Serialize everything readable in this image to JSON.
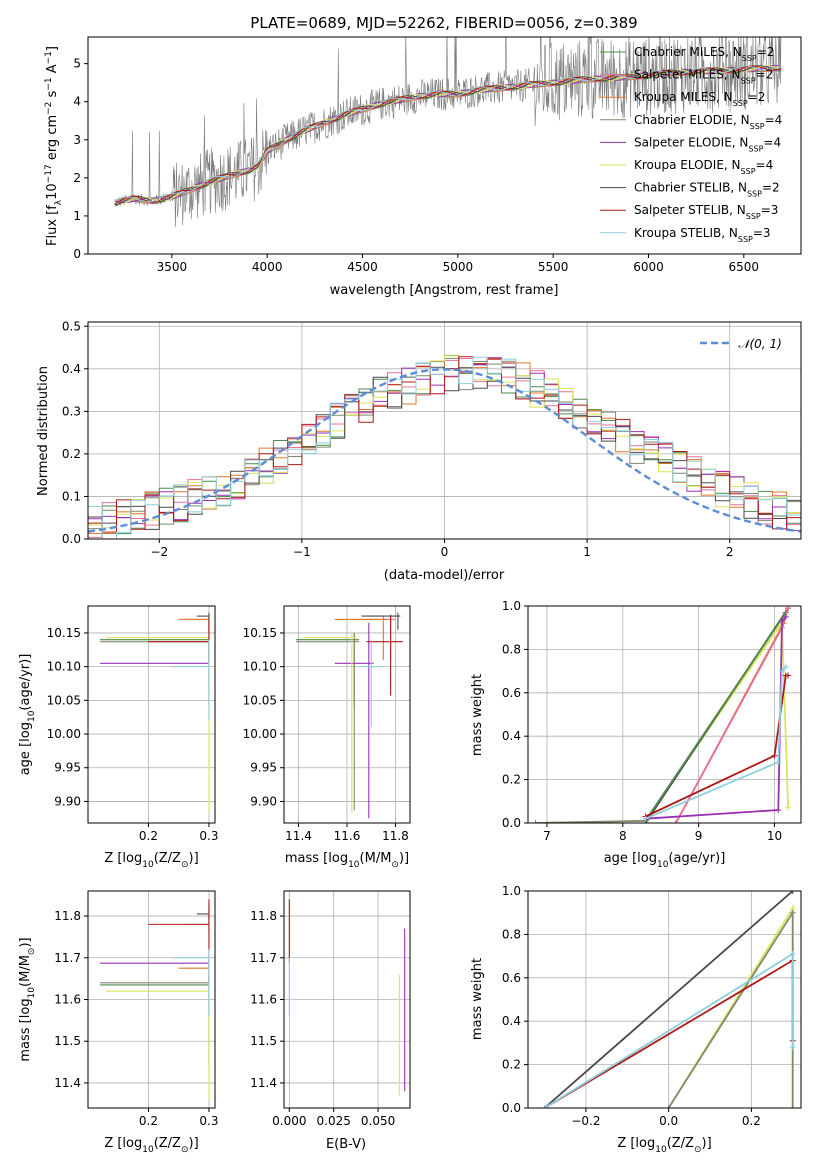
{
  "colors": {
    "Chabrier MILES": "#4c8c4c",
    "Salpeter MILES": "#e8719a",
    "Kroupa MILES": "#e07828",
    "Chabrier ELODIE": "#7f8a70",
    "Salpeter ELODIE": "#9a30b4",
    "Kroupa ELODIE": "#dde35a",
    "Chabrier STELIB": "#4a4a4a",
    "Salpeter STELIB": "#b01818",
    "Kroupa STELIB": "#8ccfdc",
    "normal_curve": "#5b8dd9",
    "grid": "#b0b0b0"
  },
  "chart_data": [
    {
      "id": "spectrum",
      "type": "line",
      "title": "PLATE=0689, MJD=52262, FIBERID=0056, z=0.389",
      "xlabel": "wavelength [Angstrom, rest frame]",
      "ylabel": "Flux [f",
      "ylabel_parts": {
        "a": "Flux [f",
        "sub": "λ",
        "b": "10",
        "sup1": "−17",
        "c": " erg cm",
        "sup2": "−2",
        "d": " s",
        "sup3": "−1",
        "e": " A",
        "sup4": "−1",
        "f": "]"
      },
      "xlim": [
        3060,
        6800
      ],
      "ylim": [
        0,
        5.7
      ],
      "xticks": [
        3500,
        4000,
        4500,
        5000,
        5500,
        6000,
        6500
      ],
      "yticks": [
        0,
        1,
        2,
        3,
        4,
        5
      ],
      "grid": false,
      "legend_position": "right",
      "legend": [
        {
          "label": "Chabrier MILES, N",
          "n": "=2",
          "series": "Chabrier MILES"
        },
        {
          "label": "Salpeter MILES, N",
          "n": "=2",
          "series": "Salpeter MILES"
        },
        {
          "label": "Kroupa MILES, N",
          "n": "=2",
          "series": "Kroupa MILES"
        },
        {
          "label": "Chabrier ELODIE, N",
          "n": "=4",
          "series": "Chabrier ELODIE"
        },
        {
          "label": "Salpeter ELODIE, N",
          "n": "=4",
          "series": "Salpeter ELODIE"
        },
        {
          "label": "Kroupa ELODIE, N",
          "n": "=4",
          "series": "Kroupa ELODIE"
        },
        {
          "label": "Chabrier STELIB, N",
          "n": "=2",
          "series": "Chabrier STELIB"
        },
        {
          "label": "Salpeter STELIB, N",
          "n": "=3",
          "series": "Salpeter STELIB"
        },
        {
          "label": "Kroupa STELIB, N",
          "n": "=3",
          "series": "Kroupa STELIB"
        }
      ],
      "legend_sub": "SSP",
      "continuum": {
        "x": [
          3200,
          3300,
          3400,
          3500,
          3600,
          3700,
          3800,
          3900,
          3950,
          4000,
          4100,
          4200,
          4300,
          4400,
          4500,
          4600,
          4700,
          4800,
          4900,
          5000,
          5100,
          5200,
          5300,
          5400,
          5500,
          5600,
          5700,
          5800,
          5900,
          6000,
          6100,
          6200,
          6300,
          6400,
          6500,
          6600,
          6700
        ],
        "y": [
          1.35,
          1.45,
          1.4,
          1.5,
          1.7,
          1.9,
          2.05,
          2.2,
          2.3,
          2.7,
          3.0,
          3.25,
          3.45,
          3.65,
          3.8,
          3.95,
          4.05,
          4.15,
          4.2,
          4.2,
          4.3,
          4.35,
          4.4,
          4.45,
          4.5,
          4.55,
          4.6,
          4.62,
          4.65,
          4.7,
          4.75,
          4.78,
          4.8,
          4.82,
          4.85,
          4.87,
          4.9
        ]
      },
      "data_start": 3200,
      "data_end": 6700
    },
    {
      "id": "residuals",
      "type": "histogram",
      "xlabel": "(data-model)/error",
      "ylabel": "Normed distribution",
      "xlim": [
        -2.5,
        2.5
      ],
      "ylim": [
        0,
        0.51
      ],
      "xticks": [
        -2,
        -1,
        0,
        1,
        2
      ],
      "xtick_labels": [
        "−2",
        "−1",
        "0",
        "1",
        "2"
      ],
      "yticks": [
        0.0,
        0.1,
        0.2,
        0.3,
        0.4,
        0.5
      ],
      "ytick_labels": [
        "0.0",
        "0.1",
        "0.2",
        "0.3",
        "0.4",
        "0.5"
      ],
      "grid": true,
      "legend": "𝒩(0, 1)",
      "legend_position": "top-right",
      "normal": {
        "mean": 0,
        "sigma": 1
      },
      "bin_width": 0.1,
      "base_profile": {
        "x": [
          -2.5,
          -2.0,
          -1.5,
          -1.0,
          -0.5,
          0.0,
          0.5,
          1.0,
          1.5,
          2.0,
          2.5
        ],
        "y": [
          0.03,
          0.07,
          0.12,
          0.22,
          0.33,
          0.39,
          0.38,
          0.29,
          0.19,
          0.11,
          0.05
        ]
      }
    },
    {
      "id": "age-vs-Z",
      "type": "scatter",
      "xlabel": "Z [log",
      "xlabel_parts": {
        "a": "Z [log",
        "sub": "10",
        "b": "(Z/Z",
        "sub2": "⊙",
        "c": ")]"
      },
      "ylabel_parts": {
        "a": "age  [log",
        "sub": "10",
        "b": "(age/yr)]"
      },
      "xlim": [
        0.1,
        0.31
      ],
      "ylim": [
        9.868,
        10.19
      ],
      "xticks": [
        0.2,
        0.3
      ],
      "xtick_labels": [
        "0.2",
        "0.3"
      ],
      "yticks": [
        9.9,
        9.95,
        10.0,
        10.05,
        10.1,
        10.15
      ],
      "ytick_labels": [
        "9.90",
        "9.95",
        "10.00",
        "10.05",
        "10.10",
        "10.15"
      ],
      "grid": true,
      "points": [
        {
          "series": "Chabrier MILES",
          "x": 0.3,
          "y": 10.14,
          "xerr": [
            0.18,
            0
          ],
          "yerr": [
            0.1,
            0.01
          ]
        },
        {
          "series": "Salpeter MILES",
          "x": 0.3,
          "y": 10.17,
          "xerr": [
            0.04,
            0
          ],
          "yerr": [
            0.02,
            0.005
          ]
        },
        {
          "series": "Kroupa MILES",
          "x": 0.3,
          "y": 10.17,
          "xerr": [
            0.05,
            0
          ],
          "yerr": [
            0.02,
            0.005
          ]
        },
        {
          "series": "Chabrier ELODIE",
          "x": 0.3,
          "y": 10.137,
          "xerr": [
            0.18,
            0
          ],
          "yerr": [
            0.03,
            0.01
          ]
        },
        {
          "series": "Salpeter ELODIE",
          "x": 0.3,
          "y": 10.105,
          "xerr": [
            0.18,
            0
          ],
          "yerr": [
            0.03,
            0.03
          ]
        },
        {
          "series": "Kroupa ELODIE",
          "x": 0.3,
          "y": 10.143,
          "xerr": [
            0.17,
            0
          ],
          "yerr": [
            0.26,
            0.01
          ]
        },
        {
          "series": "Chabrier STELIB",
          "x": 0.3,
          "y": 10.175,
          "xerr": [
            0.02,
            0
          ],
          "yerr": [
            0.02,
            0.005
          ]
        },
        {
          "series": "Salpeter STELIB",
          "x": 0.3,
          "y": 10.137,
          "xerr": [
            0.1,
            0
          ],
          "yerr": [
            0.03,
            0.03
          ]
        },
        {
          "series": "Kroupa STELIB",
          "x": 0.3,
          "y": 10.1,
          "xerr": [
            0.06,
            0
          ],
          "yerr": [
            0.08,
            0.04
          ]
        }
      ]
    },
    {
      "id": "age-vs-mass",
      "type": "scatter",
      "xlabel_parts": {
        "a": "mass [log",
        "sub": "10",
        "b": "(M/M",
        "sub2": "⊙",
        "c": ")]"
      },
      "xlim": [
        11.34,
        11.86
      ],
      "ylim": [
        9.868,
        10.19
      ],
      "xticks": [
        11.4,
        11.6,
        11.8
      ],
      "xtick_labels": [
        "11.4",
        "11.6",
        "11.8"
      ],
      "yticks": [
        9.9,
        9.95,
        10.0,
        10.05,
        10.1,
        10.15
      ],
      "ytick_labels": [
        "9.90",
        "9.95",
        "10.00",
        "10.05",
        "10.10",
        "10.15"
      ],
      "grid": true,
      "points": [
        {
          "series": "Chabrier MILES",
          "x": 11.63,
          "y": 10.14,
          "xerr": [
            0.24,
            0.02
          ],
          "yerr": [
            0.1,
            0.01
          ]
        },
        {
          "series": "Salpeter MILES",
          "x": 11.78,
          "y": 10.17,
          "xerr": [
            0.15,
            0.02
          ],
          "yerr": [
            0.06,
            0.005
          ]
        },
        {
          "series": "Kroupa MILES",
          "x": 11.75,
          "y": 10.17,
          "xerr": [
            0.2,
            0.02
          ],
          "yerr": [
            0.06,
            0.005
          ]
        },
        {
          "series": "Chabrier ELODIE",
          "x": 11.63,
          "y": 10.137,
          "xerr": [
            0.24,
            0.02
          ],
          "yerr": [
            0.25,
            0.01
          ]
        },
        {
          "series": "Salpeter ELODIE",
          "x": 11.69,
          "y": 10.105,
          "xerr": [
            0.14,
            0.02
          ],
          "yerr": [
            0.23,
            0.06
          ]
        },
        {
          "series": "Kroupa ELODIE",
          "x": 11.62,
          "y": 10.143,
          "xerr": [
            0.2,
            0.02
          ],
          "yerr": [
            0.26,
            0.01
          ]
        },
        {
          "series": "Chabrier STELIB",
          "x": 11.81,
          "y": 10.175,
          "xerr": [
            0.15,
            0.01
          ],
          "yerr": [
            0.02,
            0.005
          ]
        },
        {
          "series": "Salpeter STELIB",
          "x": 11.78,
          "y": 10.137,
          "xerr": [
            0.1,
            0.05
          ],
          "yerr": [
            0.08,
            0.04
          ]
        },
        {
          "series": "Kroupa STELIB",
          "x": 11.7,
          "y": 10.1,
          "xerr": [
            0.05,
            0.05
          ],
          "yerr": [
            0.09,
            0.04
          ]
        }
      ]
    },
    {
      "id": "weight-vs-age",
      "type": "line",
      "xlabel_parts": {
        "a": "age  [log",
        "sub": "10",
        "b": "(age/yr)]"
      },
      "ylabel": "mass weight",
      "xlim": [
        6.75,
        10.35
      ],
      "ylim": [
        0,
        1.0
      ],
      "xticks": [
        7,
        8,
        9,
        10
      ],
      "xtick_labels": [
        "7",
        "8",
        "9",
        "10"
      ],
      "yticks": [
        0.0,
        0.2,
        0.4,
        0.6,
        0.8,
        1.0
      ],
      "ytick_labels": [
        "0.0",
        "0.2",
        "0.4",
        "0.6",
        "0.8",
        "1.0"
      ],
      "grid": true,
      "series": [
        {
          "name": "Kroupa ELODIE",
          "x": [
            6.85,
            8.3,
            10.05,
            10.1,
            10.18
          ],
          "y": [
            0.0,
            0.01,
            0.9,
            0.92,
            0.07
          ]
        },
        {
          "name": "Chabrier ELODIE",
          "x": [
            6.85,
            8.3,
            10.15,
            10.18
          ],
          "y": [
            0.0,
            0.01,
            0.97,
            0.99
          ]
        },
        {
          "name": "Chabrier STELIB",
          "x": [
            8.3,
            10.18
          ],
          "y": [
            0.0,
            0.99
          ]
        },
        {
          "name": "Chabrier MILES",
          "x": [
            8.3,
            10.15
          ],
          "y": [
            0.01,
            0.97
          ]
        },
        {
          "name": "Kroupa MILES",
          "x": [
            8.7,
            10.12,
            10.18
          ],
          "y": [
            0.0,
            0.92,
            0.99
          ]
        },
        {
          "name": "Salpeter MILES",
          "x": [
            8.7,
            10.1,
            10.18
          ],
          "y": [
            0.0,
            0.9,
            0.99
          ]
        },
        {
          "name": "Salpeter ELODIE",
          "x": [
            8.3,
            10.05,
            10.1,
            10.15
          ],
          "y": [
            0.02,
            0.06,
            0.93,
            0.95
          ]
        },
        {
          "name": "Salpeter STELIB",
          "x": [
            8.3,
            10.0,
            10.15,
            10.18
          ],
          "y": [
            0.03,
            0.31,
            0.68,
            0.68
          ]
        },
        {
          "name": "Kroupa STELIB",
          "x": [
            8.3,
            10.05,
            10.1,
            10.15
          ],
          "y": [
            0.02,
            0.28,
            0.7,
            0.72
          ]
        }
      ]
    },
    {
      "id": "mass-vs-Z",
      "type": "scatter",
      "xlabel_parts": {
        "a": "Z [log",
        "sub": "10",
        "b": "(Z/Z",
        "sub2": "⊙",
        "c": ")]"
      },
      "ylabel_parts": {
        "a": "mass [log",
        "sub": "10",
        "b": "(M/M",
        "sub2": "⊙",
        "c": ")]"
      },
      "xlim": [
        0.1,
        0.31
      ],
      "ylim": [
        11.34,
        11.86
      ],
      "xticks": [
        0.2,
        0.3
      ],
      "xtick_labels": [
        "0.2",
        "0.3"
      ],
      "yticks": [
        11.4,
        11.5,
        11.6,
        11.7,
        11.8
      ],
      "ytick_labels": [
        "11.4",
        "11.5",
        "11.6",
        "11.7",
        "11.8"
      ],
      "grid": true,
      "points": [
        {
          "series": "Chabrier MILES",
          "x": 0.3,
          "y": 11.635,
          "xerr": [
            0.18,
            0
          ],
          "yerr": [
            0.2,
            0.02
          ]
        },
        {
          "series": "Salpeter MILES",
          "x": 0.3,
          "y": 11.78,
          "xerr": [
            0.04,
            0
          ],
          "yerr": [
            0.02,
            0.02
          ]
        },
        {
          "series": "Kroupa MILES",
          "x": 0.3,
          "y": 11.675,
          "xerr": [
            0.05,
            0
          ],
          "yerr": [
            0.03,
            0.02
          ]
        },
        {
          "series": "Chabrier ELODIE",
          "x": 0.3,
          "y": 11.64,
          "xerr": [
            0.18,
            0
          ],
          "yerr": [
            0.06,
            0.02
          ]
        },
        {
          "series": "Salpeter ELODIE",
          "x": 0.3,
          "y": 11.687,
          "xerr": [
            0.18,
            0
          ],
          "yerr": [
            0.05,
            0.02
          ]
        },
        {
          "series": "Kroupa ELODIE",
          "x": 0.3,
          "y": 11.62,
          "xerr": [
            0.17,
            0
          ],
          "yerr": [
            0.26,
            0.02
          ]
        },
        {
          "series": "Chabrier STELIB",
          "x": 0.3,
          "y": 11.805,
          "xerr": [
            0.02,
            0
          ],
          "yerr": [
            0.02,
            0.02
          ]
        },
        {
          "series": "Salpeter STELIB",
          "x": 0.3,
          "y": 11.78,
          "xerr": [
            0.1,
            0
          ],
          "yerr": [
            0.09,
            0.06
          ]
        },
        {
          "series": "Kroupa STELIB",
          "x": 0.3,
          "y": 11.7,
          "xerr": [
            0.06,
            0
          ],
          "yerr": [
            0.14,
            0.02
          ]
        }
      ]
    },
    {
      "id": "mass-vs-EBV",
      "type": "scatter",
      "xlabel": "E(B-V)",
      "xlim": [
        -0.003,
        0.068
      ],
      "ylim": [
        11.34,
        11.86
      ],
      "xticks": [
        0.0,
        0.025,
        0.05
      ],
      "xtick_labels": [
        "0.000",
        "0.025",
        "0.050"
      ],
      "yticks": [
        11.4,
        11.5,
        11.6,
        11.7,
        11.8
      ],
      "ytick_labels": [
        "11.4",
        "11.5",
        "11.6",
        "11.7",
        "11.8"
      ],
      "grid": true,
      "points": [
        {
          "series": "Salpeter STELIB",
          "x": 0.0,
          "y": 11.78,
          "xerr": [
            0,
            0
          ],
          "yerr": [
            0.09,
            0.06
          ]
        },
        {
          "series": "Kroupa STELIB",
          "x": 0.0,
          "y": 11.65,
          "xerr": [
            0,
            0
          ],
          "yerr": [
            0.09,
            0.05
          ]
        },
        {
          "series": "Kroupa ELODIE",
          "x": 0.062,
          "y": 11.55,
          "xerr": [
            0,
            0
          ],
          "yerr": [
            0.18,
            0.11
          ]
        },
        {
          "series": "Salpeter ELODIE",
          "x": 0.065,
          "y": 11.6,
          "xerr": [
            0,
            0
          ],
          "yerr": [
            0.22,
            0.17
          ]
        }
      ]
    },
    {
      "id": "weight-vs-Z",
      "type": "line",
      "xlabel_parts": {
        "a": "Z [log",
        "sub": "10",
        "b": "(Z/Z",
        "sub2": "⊙",
        "c": ")]"
      },
      "ylabel": "mass weight",
      "xlim": [
        -0.34,
        0.32
      ],
      "ylim": [
        0,
        1.0
      ],
      "xticks": [
        -0.2,
        0.0,
        0.2
      ],
      "xtick_labels": [
        "−0.2",
        "0.0",
        "0.2"
      ],
      "yticks": [
        0.0,
        0.2,
        0.4,
        0.6,
        0.8,
        1.0
      ],
      "ytick_labels": [
        "0.0",
        "0.2",
        "0.4",
        "0.6",
        "0.8",
        "1.0"
      ],
      "grid": true,
      "series": [
        {
          "name": "Chabrier STELIB",
          "x": [
            -0.3,
            0.3
          ],
          "y": [
            0.0,
            1.0
          ]
        },
        {
          "name": "Kroupa ELODIE",
          "x": [
            0.0,
            0.3,
            0.3
          ],
          "y": [
            0.0,
            0.92,
            0.0
          ]
        },
        {
          "name": "Chabrier ELODIE",
          "x": [
            0.0,
            0.3,
            0.3
          ],
          "y": [
            0.0,
            0.9,
            0.0
          ]
        },
        {
          "name": "Salpeter STELIB",
          "x": [
            -0.3,
            0.3,
            0.3
          ],
          "y": [
            0.0,
            0.68,
            0.31
          ]
        },
        {
          "name": "Kroupa STELIB",
          "x": [
            -0.3,
            0.3,
            0.3
          ],
          "y": [
            0.0,
            0.71,
            0.28
          ]
        }
      ]
    }
  ]
}
